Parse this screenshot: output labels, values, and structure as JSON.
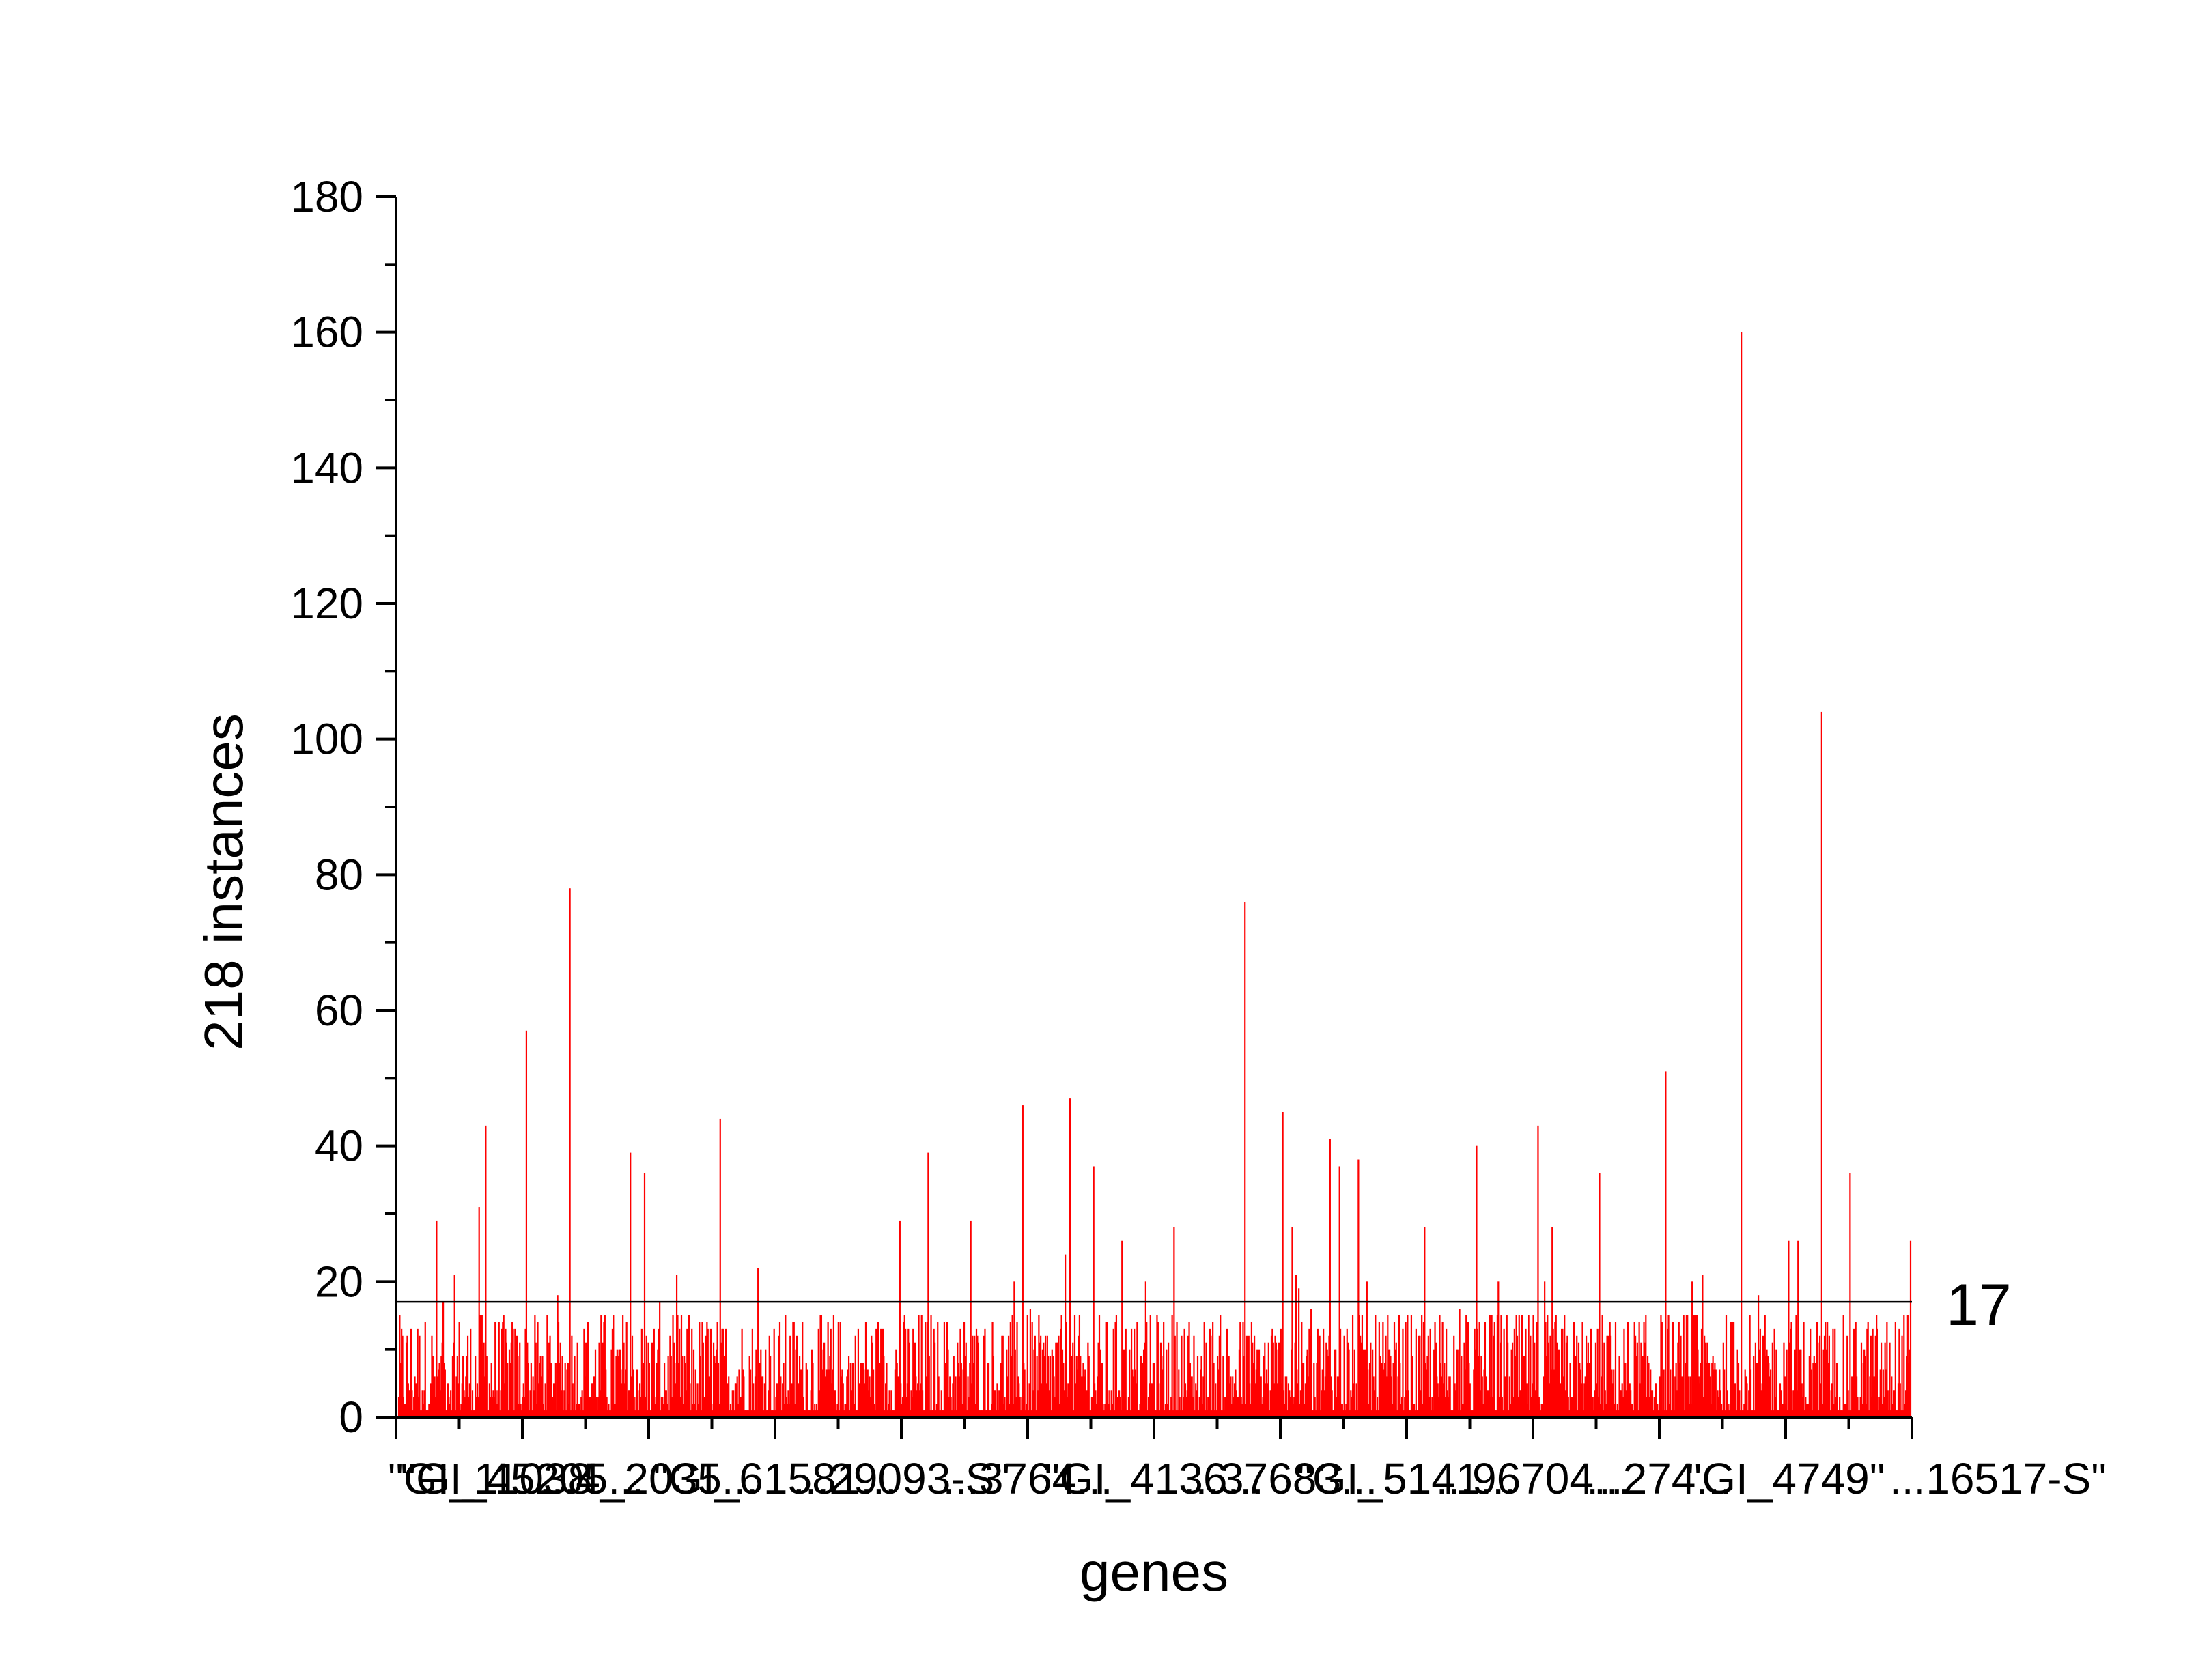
{
  "chart_data": {
    "type": "bar",
    "xlabel": "genes",
    "ylabel": "218 instances",
    "ylim": [
      0,
      180
    ],
    "yticks": [
      0,
      20,
      40,
      60,
      80,
      100,
      120,
      140,
      160,
      180
    ],
    "grid": false,
    "bar_color": "#ff0000",
    "n_genes": 1600,
    "x_tick_labels": [
      "\"GI_11038",
      "\"GI_45205...",
      "...4_2035...",
      "\"GI_61581...",
      "...29093-S\"",
      "...3764...",
      "\"GI_4136...",
      "...37683...",
      "\"GI_5141...",
      "...96704...",
      "...274...",
      "\"GI_4749\"",
      "...16517-S\""
    ],
    "reference_line": {
      "value": 17,
      "label": "17"
    },
    "peaks": [
      {
        "index": 40,
        "value": 29
      },
      {
        "index": 85,
        "value": 31
      },
      {
        "index": 92,
        "value": 43
      },
      {
        "index": 135,
        "value": 57
      },
      {
        "index": 181,
        "value": 78
      },
      {
        "index": 245,
        "value": 39
      },
      {
        "index": 260,
        "value": 36
      },
      {
        "index": 340,
        "value": 44
      },
      {
        "index": 380,
        "value": 22
      },
      {
        "index": 530,
        "value": 29
      },
      {
        "index": 560,
        "value": 39
      },
      {
        "index": 605,
        "value": 29
      },
      {
        "index": 660,
        "value": 46
      },
      {
        "index": 705,
        "value": 24
      },
      {
        "index": 710,
        "value": 47
      },
      {
        "index": 735,
        "value": 37
      },
      {
        "index": 765,
        "value": 26
      },
      {
        "index": 820,
        "value": 28
      },
      {
        "index": 895,
        "value": 76
      },
      {
        "index": 935,
        "value": 45
      },
      {
        "index": 945,
        "value": 28
      },
      {
        "index": 985,
        "value": 41
      },
      {
        "index": 995,
        "value": 37
      },
      {
        "index": 1015,
        "value": 38
      },
      {
        "index": 1085,
        "value": 28
      },
      {
        "index": 1140,
        "value": 40
      },
      {
        "index": 1205,
        "value": 43
      },
      {
        "index": 1220,
        "value": 28
      },
      {
        "index": 1270,
        "value": 36
      },
      {
        "index": 1340,
        "value": 51
      },
      {
        "index": 1420,
        "value": 160
      },
      {
        "index": 1470,
        "value": 26
      },
      {
        "index": 1480,
        "value": 26
      },
      {
        "index": 1505,
        "value": 104
      },
      {
        "index": 1535,
        "value": 36
      },
      {
        "index": 1599,
        "value": 26
      }
    ],
    "baseline_range": [
      1,
      15
    ]
  }
}
